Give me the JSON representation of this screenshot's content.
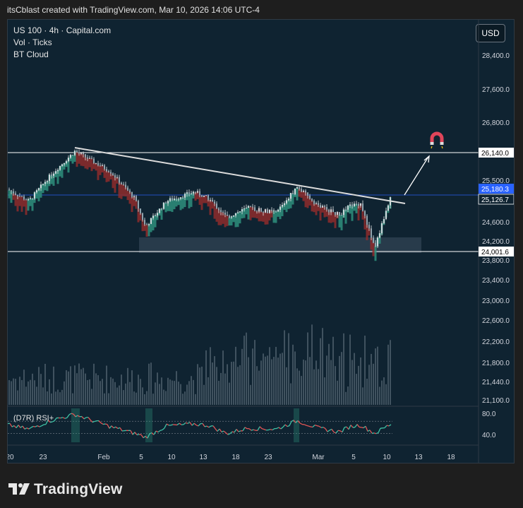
{
  "header": {
    "text": "itsCblast created with TradingView.com, Mar 10, 2026 14:06 UTC-4"
  },
  "legend": {
    "line1": "US 100 · 4h · Capital.com",
    "line2": "Vol · Ticks",
    "line3": "BT Cloud"
  },
  "currency_button": "USD",
  "rsi_label": "(D7R) RSI+",
  "footer_logo": "TradingView",
  "colors": {
    "background": "#0f2331",
    "bull": "#2e8f7c",
    "bear": "#8e2c2c",
    "trendline": "#d9d9d9",
    "price_tag": "#2962ff"
  },
  "chart_data": [
    {
      "type": "candlestick",
      "symbol": "US 100",
      "timeframe": "4h",
      "source": "Capital.com",
      "y_ticks": [
        28400.0,
        27600.0,
        26800.0,
        25500.0,
        24600.0,
        24200.0,
        23800.0,
        23400.0,
        23000.0,
        22600.0,
        22200.0,
        21800.0,
        21440.0,
        21100.0
      ],
      "x_ticks": [
        "20",
        "23",
        "Feb",
        "5",
        "10",
        "13",
        "18",
        "23",
        "Mar",
        "5",
        "10",
        "13",
        "18"
      ],
      "price_labels": [
        {
          "value": "26,140.0",
          "style": "level"
        },
        {
          "value": "25,180.3",
          "style": "current"
        },
        {
          "value": "25,126.7",
          "style": "trendline"
        },
        {
          "value": "24,001.6",
          "style": "level"
        }
      ],
      "horizontal_levels": [
        26140.0,
        24001.6
      ],
      "support_zone": [
        24000,
        24300
      ],
      "trendline": {
        "from": [
          "Jan 28",
          26180
        ],
        "to": [
          "Mar 11",
          24870
        ]
      },
      "target_arrow_to": 26000,
      "series": [
        {
          "name": "close",
          "x": [
            "Jan 20",
            "Jan 23",
            "Jan 26",
            "Jan 28",
            "Jan 30",
            "Feb 2",
            "Feb 4",
            "Feb 5",
            "Feb 9",
            "Feb 11",
            "Feb 13",
            "Feb 17",
            "Feb 19",
            "Feb 23",
            "Feb 25",
            "Feb 27",
            "Mar 2",
            "Mar 4",
            "Mar 6",
            "Mar 9",
            "Mar 10"
          ],
          "values": [
            25300,
            25050,
            25600,
            26150,
            26000,
            25700,
            25100,
            24500,
            25050,
            25250,
            25100,
            24700,
            24900,
            24800,
            25350,
            24950,
            24750,
            24950,
            25000,
            24050,
            25180
          ]
        }
      ]
    },
    {
      "type": "rsi",
      "label": "(D7R) RSI+",
      "y_ticks": [
        80.0,
        40.0
      ],
      "values": [
        58,
        50,
        66,
        78,
        70,
        55,
        42,
        35,
        56,
        60,
        57,
        42,
        52,
        50,
        66,
        52,
        45,
        55,
        58,
        42,
        60
      ]
    }
  ]
}
